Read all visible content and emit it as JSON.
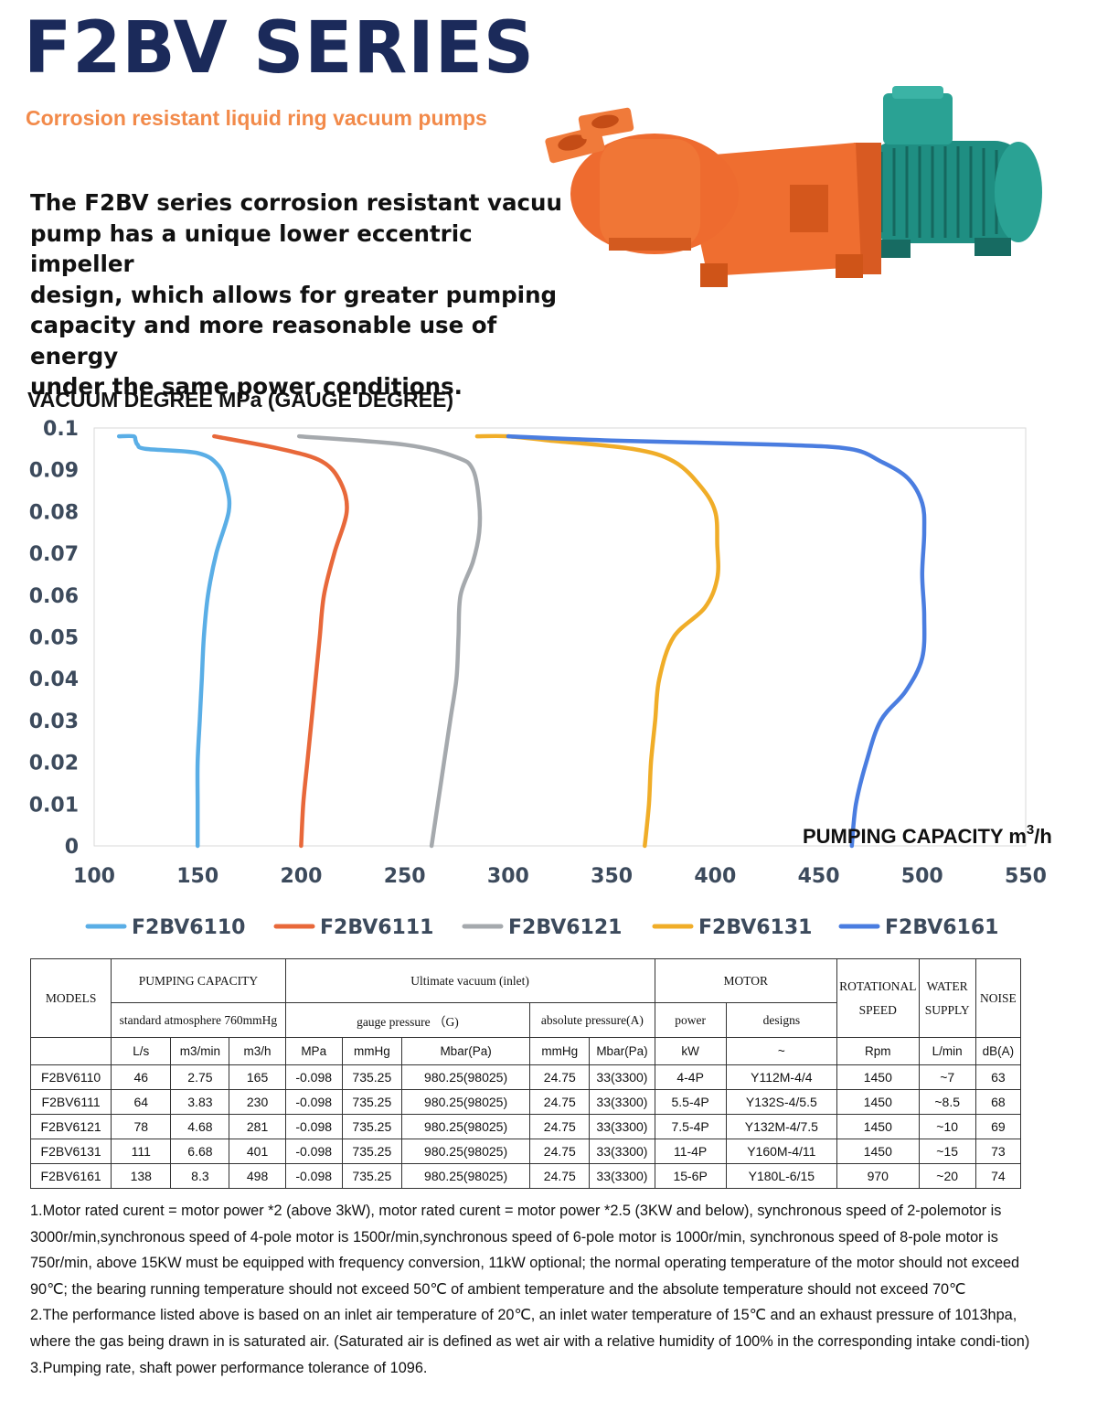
{
  "header": {
    "title": "F2BV SERIES",
    "subtitle": "Corrosion resistant liquid ring vacuum pumps",
    "intro_lines": [
      "The F2BV series corrosion resistant vacuu",
      "pump has a unique lower eccentric impeller",
      "design, which allows for greater pumping",
      "capacity and more reasonable use of energy",
      "under the same power conditions."
    ]
  },
  "chart_data": {
    "type": "line",
    "title": "VACUUM DEGREE MPa (GAUGE DEGREE)",
    "xlabel": "PUMPING  CAPACITY m",
    "xlabel_sup": "3",
    "xlabel_tail": "/h",
    "xlim": [
      100,
      550
    ],
    "ylim": [
      0,
      0.1
    ],
    "x_ticks": [
      "100",
      "150",
      "200",
      "250",
      "300",
      "350",
      "400",
      "450",
      "500",
      "550"
    ],
    "y_ticks": [
      "0",
      "0.01",
      "0.02",
      "0.03",
      "0.04",
      "0.05",
      "0.06",
      "0.07",
      "0.08",
      "0.09",
      "0.1"
    ],
    "grid": false,
    "legend": "bottom",
    "series": [
      {
        "name": "F2BV6110",
        "color": "#5aaee6",
        "points": [
          [
            150,
            0
          ],
          [
            150,
            0.01
          ],
          [
            150,
            0.02
          ],
          [
            151,
            0.03
          ],
          [
            152,
            0.04
          ],
          [
            153,
            0.05
          ],
          [
            155,
            0.06
          ],
          [
            159,
            0.07
          ],
          [
            165,
            0.08
          ],
          [
            164,
            0.086
          ],
          [
            160,
            0.091
          ],
          [
            150,
            0.094
          ],
          [
            125,
            0.095
          ],
          [
            121,
            0.096
          ],
          [
            120,
            0.097
          ],
          [
            119,
            0.098
          ],
          [
            112,
            0.098
          ]
        ]
      },
      {
        "name": "F2BV6111",
        "color": "#e8683a",
        "points": [
          [
            200,
            0
          ],
          [
            201,
            0.01
          ],
          [
            203,
            0.02
          ],
          [
            205,
            0.03
          ],
          [
            207,
            0.04
          ],
          [
            209,
            0.05
          ],
          [
            211,
            0.06
          ],
          [
            216,
            0.07
          ],
          [
            222,
            0.08
          ],
          [
            219,
            0.087
          ],
          [
            210,
            0.092
          ],
          [
            190,
            0.095
          ],
          [
            158,
            0.098
          ]
        ]
      },
      {
        "name": "F2BV6121",
        "color": "#a5a9ad",
        "points": [
          [
            263,
            0
          ],
          [
            266,
            0.01
          ],
          [
            269,
            0.02
          ],
          [
            272,
            0.03
          ],
          [
            275,
            0.04
          ],
          [
            276,
            0.05
          ],
          [
            277,
            0.06
          ],
          [
            283,
            0.068
          ],
          [
            286,
            0.075
          ],
          [
            286,
            0.082
          ],
          [
            283,
            0.09
          ],
          [
            275,
            0.093
          ],
          [
            250,
            0.096
          ],
          [
            199,
            0.098
          ]
        ]
      },
      {
        "name": "F2BV6131",
        "color": "#f0ad28",
        "points": [
          [
            366,
            0
          ],
          [
            368,
            0.01
          ],
          [
            369,
            0.02
          ],
          [
            371,
            0.03
          ],
          [
            373,
            0.04
          ],
          [
            380,
            0.05
          ],
          [
            395,
            0.057
          ],
          [
            401,
            0.064
          ],
          [
            401,
            0.072
          ],
          [
            400,
            0.08
          ],
          [
            393,
            0.086
          ],
          [
            380,
            0.092
          ],
          [
            360,
            0.095
          ],
          [
            320,
            0.097
          ],
          [
            300,
            0.098
          ],
          [
            285,
            0.098
          ]
        ]
      },
      {
        "name": "F2BV6161",
        "color": "#4a7de0",
        "points": [
          [
            466,
            0
          ],
          [
            468,
            0.01
          ],
          [
            473,
            0.02
          ],
          [
            480,
            0.03
          ],
          [
            492,
            0.037
          ],
          [
            500,
            0.045
          ],
          [
            501,
            0.055
          ],
          [
            500,
            0.065
          ],
          [
            501,
            0.075
          ],
          [
            500,
            0.082
          ],
          [
            493,
            0.088
          ],
          [
            480,
            0.092
          ],
          [
            465,
            0.095
          ],
          [
            430,
            0.096
          ],
          [
            350,
            0.097
          ],
          [
            300,
            0.098
          ]
        ]
      }
    ]
  },
  "table": {
    "h_models": "MODELS",
    "h_pumping": "PUMPING CAPACITY",
    "h_ultimate": "Ultimate vacuum (inlet)",
    "h_motor": "MOTOR",
    "h_rot1": "ROTATIONAL",
    "h_rot2": "SPEED",
    "h_water1": "WATER",
    "h_water2": "SUPPLY",
    "h_noise": "NOISE",
    "h_std": "standard atmosphere 760mmHg",
    "h_gauge": "gauge pressure （G)",
    "h_abs": "absolute pressure(A)",
    "h_power": "power",
    "h_designs": "designs",
    "units": [
      "L/s",
      "m3/min",
      "m3/h",
      "MPa",
      "mmHg",
      "Mbar(Pa)",
      "mmHg",
      "Mbar(Pa)",
      "kW",
      "~",
      "Rpm",
      "L/min",
      "dB(A)"
    ],
    "rows": [
      [
        "F2BV6110",
        "46",
        "2.75",
        "165",
        "-0.098",
        "735.25",
        "980.25(98025)",
        "24.75",
        "33(3300)",
        "4-4P",
        "Y112M-4/4",
        "1450",
        "~7",
        "63"
      ],
      [
        "F2BV6111",
        "64",
        "3.83",
        "230",
        "-0.098",
        "735.25",
        "980.25(98025)",
        "24.75",
        "33(3300)",
        "5.5-4P",
        "Y132S-4/5.5",
        "1450",
        "~8.5",
        "68"
      ],
      [
        "F2BV6121",
        "78",
        "4.68",
        "281",
        "-0.098",
        "735.25",
        "980.25(98025)",
        "24.75",
        "33(3300)",
        "7.5-4P",
        "Y132M-4/7.5",
        "1450",
        "~10",
        "69"
      ],
      [
        "F2BV6131",
        "111",
        "6.68",
        "401",
        "-0.098",
        "735.25",
        "980.25(98025)",
        "24.75",
        "33(3300)",
        "11-4P",
        "Y160M-4/11",
        "1450",
        "~15",
        "73"
      ],
      [
        "F2BV6161",
        "138",
        "8.3",
        "498",
        "-0.098",
        "735.25",
        "980.25(98025)",
        "24.75",
        "33(3300)",
        "15-6P",
        "Y180L-6/15",
        "970",
        "~20",
        "74"
      ]
    ]
  },
  "notes": [
    "1.Motor rated curent = motor power *2 (above 3kW), motor rated curent = motor power *2.5 (3KW and below), synchronous speed of 2-polemotor is 3000r/min,synchronous speed of 4-pole motor is 1500r/min,synchronous speed of 6-pole motor is 1000r/min, synchronous speed of 8-pole motor is 750r/min, above 15KW must be equipped with frequency conversion, 11kW optional; the normal operating temperature of the motor should not exceed 90℃; the bearing running temperature should not exceed 50℃ of ambient temperature and the absolute temperature should not exceed 70℃",
    "2.The performance listed above is based on an inlet air temperature of 20℃, an inlet water temperature of 15℃ and an exhaust pressure of 1013hpa, where the gas being drawn in is saturated air. (Saturated air is defined as wet air with a relative humidity of 100% in the corresponding intake condi-tion)",
    "3.Pumping rate, shaft power performance tolerance of 1096."
  ],
  "colors": {
    "title": "#1b2a5a",
    "subtitle": "#f28a4a",
    "axis_text": "#3c4a5c",
    "pump_body": "#ee6b2f",
    "motor_body": "#2a9a8c"
  },
  "icons": [
    "pump-photo"
  ]
}
